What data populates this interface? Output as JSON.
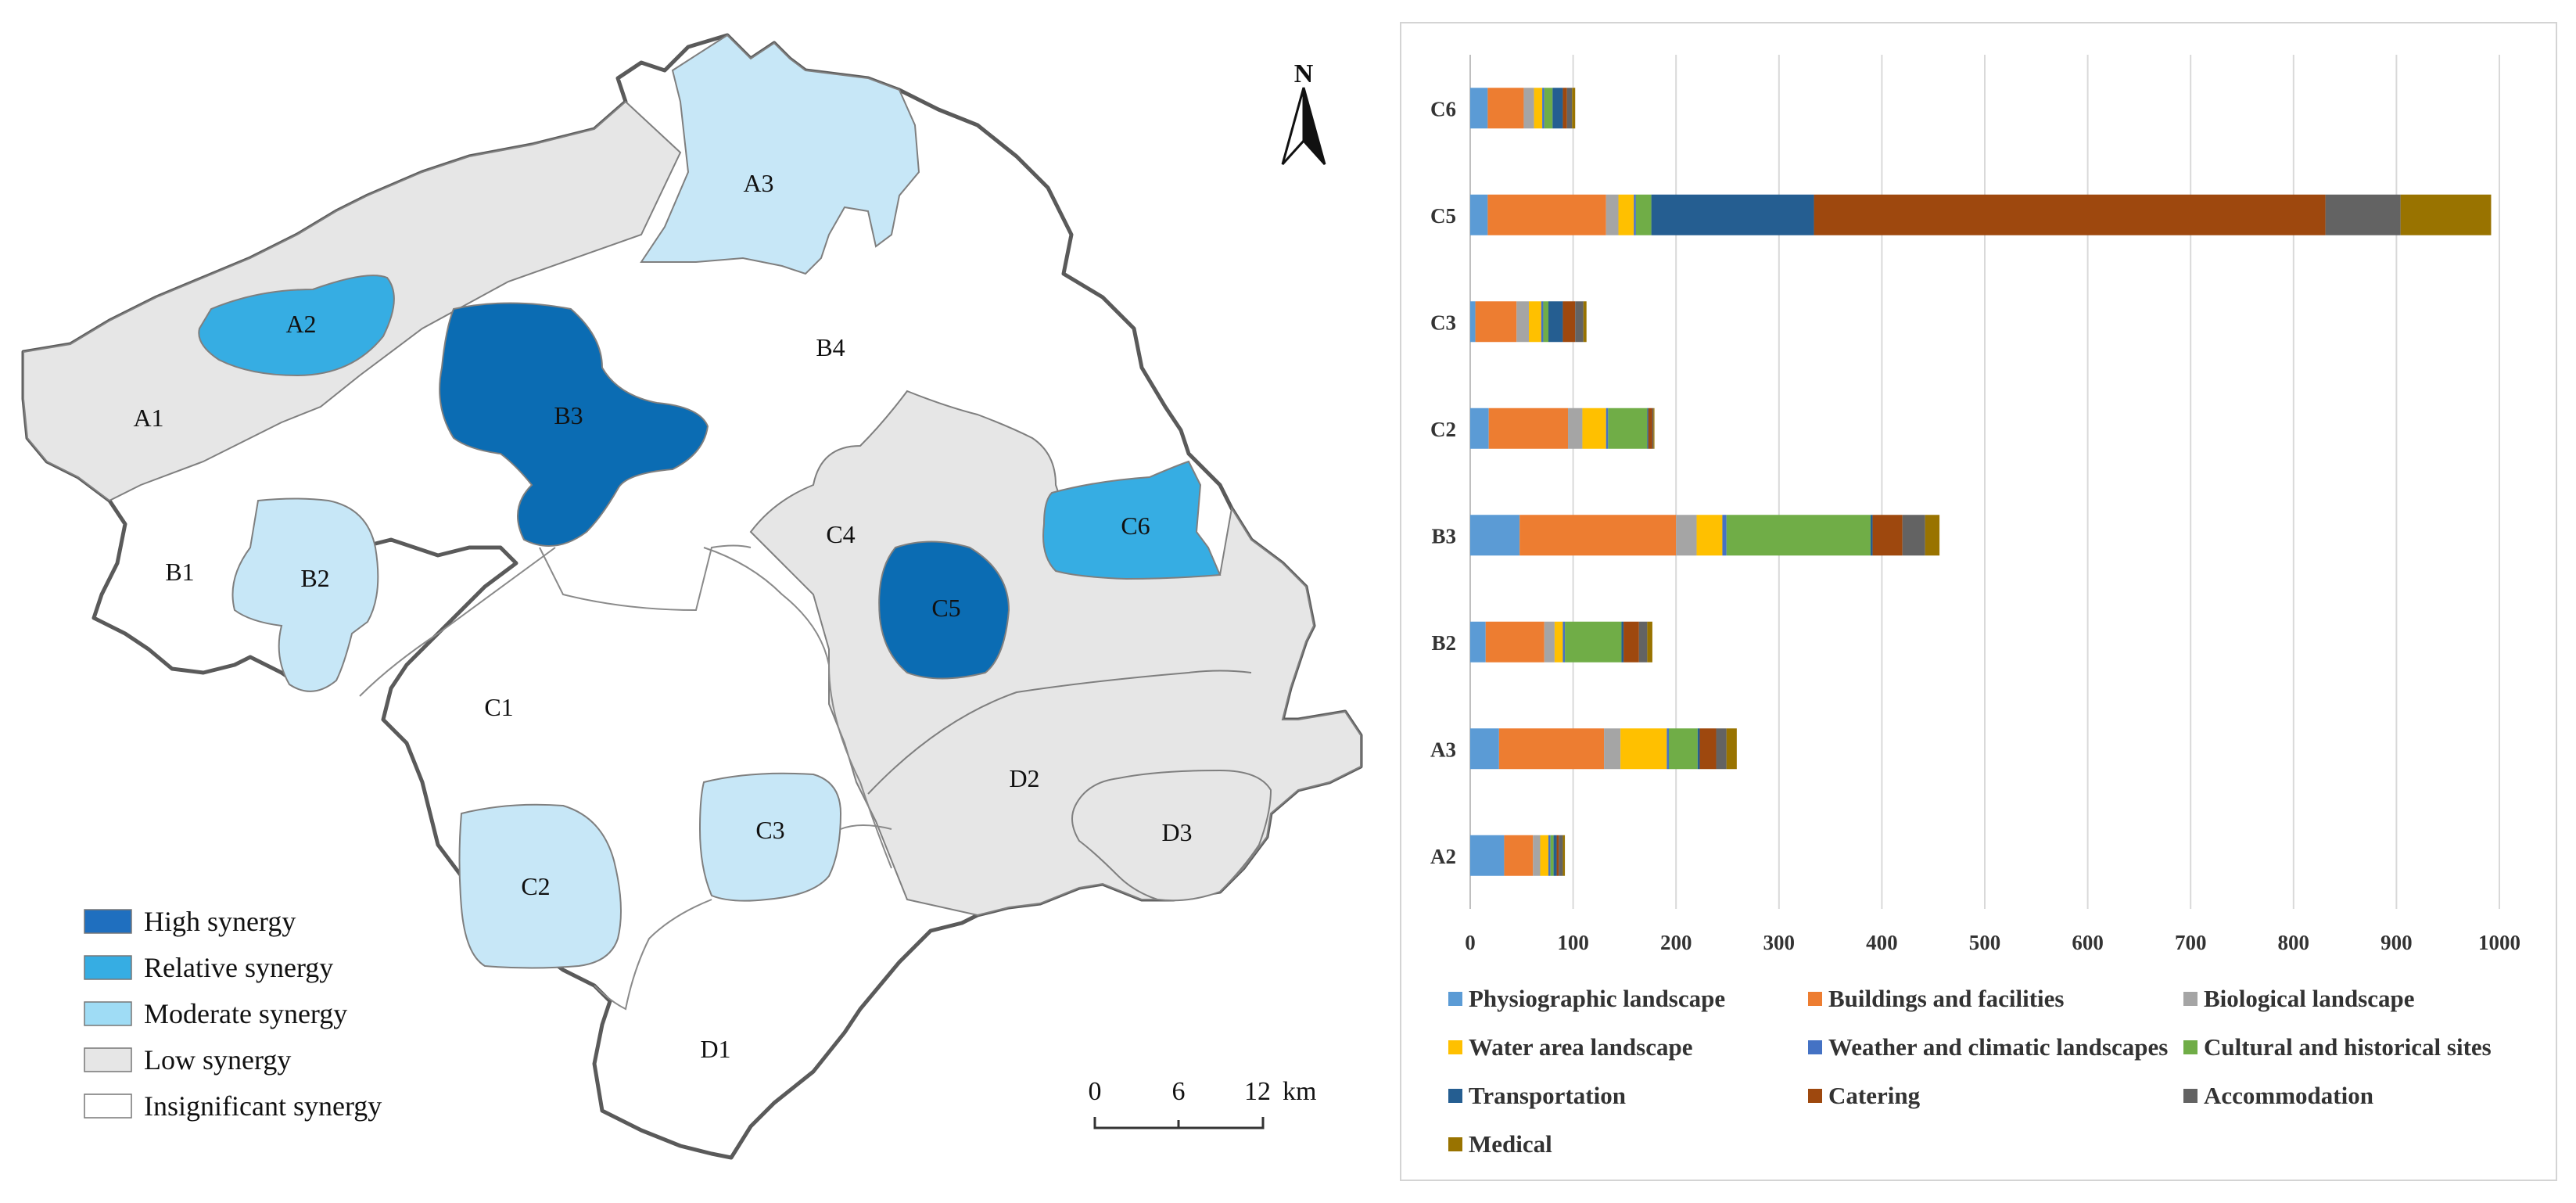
{
  "map": {
    "north_label": "N",
    "scale": {
      "ticks": [
        "0",
        "6",
        "12"
      ],
      "unit": "km"
    },
    "legend": [
      {
        "key": "high",
        "label": "High synergy",
        "color": "#1f6fbf"
      },
      {
        "key": "relative",
        "label": "Relative synergy",
        "color": "#36ade3"
      },
      {
        "key": "moderate",
        "label": "Moderate synergy",
        "color": "#c7e7f7"
      },
      {
        "key": "low",
        "label": "Low synergy",
        "color": "#e6e6e6"
      },
      {
        "key": "insignificant",
        "label": "Insignificant synergy",
        "color": "#ffffff"
      }
    ],
    "regions": {
      "A1": {
        "label": "A1",
        "level": "low"
      },
      "A2": {
        "label": "A2",
        "level": "relative"
      },
      "A3": {
        "label": "A3",
        "level": "moderate"
      },
      "B1": {
        "label": "B1",
        "level": "insignificant"
      },
      "B2": {
        "label": "B2",
        "level": "moderate"
      },
      "B3": {
        "label": "B3",
        "level": "high"
      },
      "B4": {
        "label": "B4",
        "level": "insignificant"
      },
      "C1": {
        "label": "C1",
        "level": "insignificant"
      },
      "C2": {
        "label": "C2",
        "level": "moderate"
      },
      "C3": {
        "label": "C3",
        "level": "moderate"
      },
      "C4": {
        "label": "C4",
        "level": "low"
      },
      "C5": {
        "label": "C5",
        "level": "high"
      },
      "C6": {
        "label": "C6",
        "level": "relative"
      },
      "D1": {
        "label": "D1",
        "level": "insignificant"
      },
      "D2": {
        "label": "D2",
        "level": "low"
      },
      "D3": {
        "label": "D3",
        "level": "low"
      }
    }
  },
  "chart_data": {
    "type": "bar",
    "orientation": "horizontal",
    "stacked": true,
    "title": "",
    "xlabel": "",
    "ylabel": "",
    "xlim": [
      0,
      1000
    ],
    "xticks": [
      0,
      100,
      200,
      300,
      400,
      500,
      600,
      700,
      800,
      900,
      1000
    ],
    "grid": true,
    "legend_position": "bottom",
    "categories": [
      "C6",
      "C5",
      "C3",
      "C2",
      "B3",
      "B2",
      "A3",
      "A2"
    ],
    "series": [
      {
        "name": "Physiographic landscape",
        "color": "#5b9bd5",
        "values": [
          17,
          17,
          5,
          18,
          48,
          15,
          28,
          33
        ]
      },
      {
        "name": "Buildings and facilities",
        "color": "#ed7d31",
        "values": [
          35,
          115,
          40,
          77,
          152,
          57,
          102,
          28
        ]
      },
      {
        "name": "Biological landscape",
        "color": "#a5a5a5",
        "values": [
          10,
          12,
          12,
          14,
          20,
          10,
          16,
          7
        ]
      },
      {
        "name": "Water area landscape",
        "color": "#ffc000",
        "values": [
          8,
          15,
          12,
          23,
          25,
          8,
          45,
          8
        ]
      },
      {
        "name": "Weather and climatic landscapes",
        "color": "#4472c4",
        "values": [
          2,
          2,
          2,
          2,
          4,
          2,
          2,
          2
        ]
      },
      {
        "name": "Cultural and historical sites",
        "color": "#70ad47",
        "values": [
          8,
          15,
          5,
          38,
          140,
          55,
          28,
          3
        ]
      },
      {
        "name": "Transportation",
        "color": "#255e91",
        "values": [
          10,
          158,
          14,
          1,
          2,
          2,
          2,
          3
        ]
      },
      {
        "name": "Catering",
        "color": "#9e480e",
        "values": [
          4,
          497,
          12,
          4,
          29,
          15,
          16,
          2
        ]
      },
      {
        "name": "Accommodation",
        "color": "#636363",
        "values": [
          5,
          73,
          8,
          1,
          22,
          8,
          10,
          4
        ]
      },
      {
        "name": "Medical",
        "color": "#997300",
        "values": [
          3,
          88,
          3,
          1,
          14,
          5,
          10,
          2
        ]
      }
    ]
  }
}
